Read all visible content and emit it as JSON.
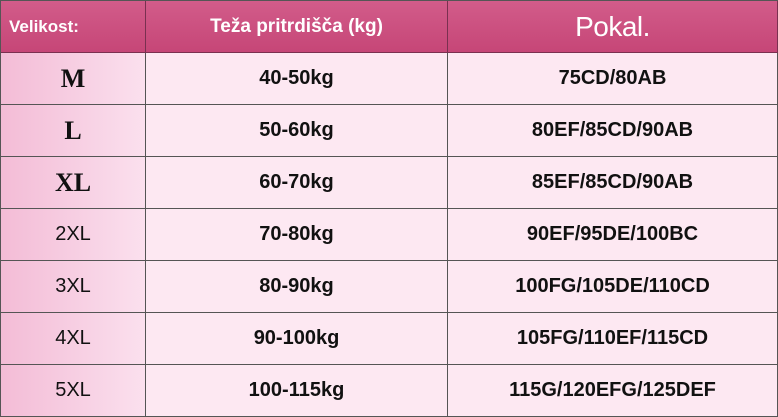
{
  "table": {
    "header": [
      "Velikost:",
      "Teža pritrdišča (kg)",
      "Pokal."
    ],
    "rows": [
      [
        "M",
        "40-50kg",
        "75CD/80AB"
      ],
      [
        "L",
        "50-60kg",
        "80EF/85CD/90AB"
      ],
      [
        "XL",
        "60-70kg",
        "85EF/85CD/90AB"
      ],
      [
        "2XL",
        "70-80kg",
        "90EF/95DE/100BC"
      ],
      [
        "3XL",
        "80-90kg",
        "100FG/105DE/110CD"
      ],
      [
        "4XL",
        "90-100kg",
        "105FG/110EF/115CD"
      ],
      [
        "5XL",
        "100-115kg",
        "115G/120EFG/125DEF"
      ]
    ]
  }
}
